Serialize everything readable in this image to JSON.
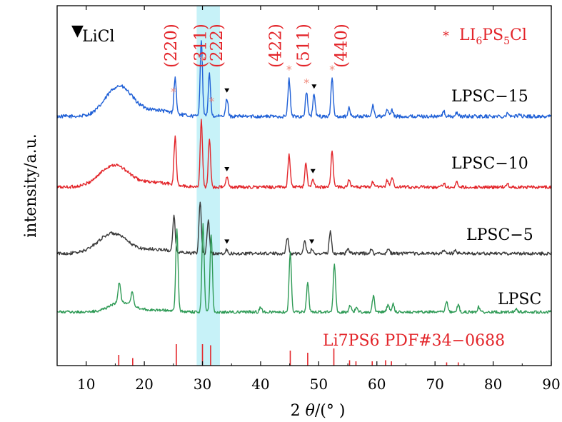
{
  "chart_data": {
    "type": "line",
    "xlabel_prefix": "2",
    "xlabel_symbol": "θ",
    "xlabel_unit": "/(°  )",
    "ylabel": "intensity/a.u.",
    "xlim": [
      5,
      90
    ],
    "xticks": [
      10,
      20,
      30,
      40,
      50,
      60,
      70,
      80,
      90
    ],
    "highlight_band": [
      29,
      33
    ],
    "colors": {
      "highlight": "#bdf0f7",
      "peak_marker": "#e3252a",
      "reference": "#e3252a"
    },
    "legend": {
      "licl": {
        "symbol": "▼",
        "text": "LiCl"
      },
      "lpsc": {
        "symbol": "*",
        "text_base": "LI",
        "sub1": "6",
        "text_mid": "PS",
        "sub2": "5",
        "text_end": "Cl"
      }
    },
    "reference_label": "Li7PS6   PDF#34−0688",
    "reference_lines": [
      {
        "x": 15.6,
        "h": 0.5
      },
      {
        "x": 18.0,
        "h": 0.35
      },
      {
        "x": 25.5,
        "h": 1.0
      },
      {
        "x": 30.0,
        "h": 1.0
      },
      {
        "x": 31.4,
        "h": 0.95
      },
      {
        "x": 45.1,
        "h": 0.7
      },
      {
        "x": 48.1,
        "h": 0.6
      },
      {
        "x": 52.6,
        "h": 0.8
      },
      {
        "x": 55.3,
        "h": 0.25
      },
      {
        "x": 56.4,
        "h": 0.2
      },
      {
        "x": 59.2,
        "h": 0.2
      },
      {
        "x": 61.5,
        "h": 0.25
      },
      {
        "x": 62.5,
        "h": 0.2
      },
      {
        "x": 72.0,
        "h": 0.15
      },
      {
        "x": 74.0,
        "h": 0.15
      }
    ],
    "hkl_labels": [
      {
        "text": "(220)",
        "x": 25.5
      },
      {
        "text": "(311)",
        "x": 30.6
      },
      {
        "text": "(222)",
        "x": 33.4
      },
      {
        "text": "(422)",
        "x": 43.5
      },
      {
        "text": "(511)",
        "x": 48.3
      },
      {
        "text": "(440)",
        "x": 54.8
      }
    ],
    "star_marks": [
      {
        "x": 25.0,
        "series": "LPSC-15"
      },
      {
        "x": 30.0,
        "series": "LPSC-15"
      },
      {
        "x": 31.6,
        "series": "LPSC-15"
      },
      {
        "x": 44.9,
        "series": "LPSC-15"
      },
      {
        "x": 47.9,
        "series": "LPSC-15"
      },
      {
        "x": 52.3,
        "series": "LPSC-15"
      }
    ],
    "triangle_marks": [
      {
        "x": 34.2,
        "series": "LPSC-15"
      },
      {
        "x": 49.2,
        "series": "LPSC-15"
      },
      {
        "x": 34.2,
        "series": "LPSC-10"
      },
      {
        "x": 49.0,
        "series": "LPSC-10"
      },
      {
        "x": 34.2,
        "series": "LPSC-5"
      },
      {
        "x": 48.8,
        "series": "LPSC-5"
      }
    ],
    "series": [
      {
        "name": "LPSC−15",
        "id": "LPSC-15",
        "color": "#1e5fd6",
        "baseline": 0.0,
        "noise": 0.018,
        "hump": {
          "center": 15.6,
          "height": 0.3,
          "width": 3.2
        },
        "peaks": [
          {
            "x": 25.3,
            "h": 0.36
          },
          {
            "x": 29.8,
            "h": 0.77
          },
          {
            "x": 31.2,
            "h": 0.42
          },
          {
            "x": 34.2,
            "h": 0.18
          },
          {
            "x": 44.9,
            "h": 0.37
          },
          {
            "x": 47.9,
            "h": 0.24
          },
          {
            "x": 49.2,
            "h": 0.22
          },
          {
            "x": 52.3,
            "h": 0.37
          },
          {
            "x": 55.2,
            "h": 0.08
          },
          {
            "x": 59.3,
            "h": 0.11
          },
          {
            "x": 61.8,
            "h": 0.07
          },
          {
            "x": 62.6,
            "h": 0.06
          },
          {
            "x": 71.5,
            "h": 0.05
          },
          {
            "x": 73.8,
            "h": 0.04
          },
          {
            "x": 82.5,
            "h": 0.04
          },
          {
            "x": 84.5,
            "h": 0.03
          }
        ]
      },
      {
        "name": "LPSC−10",
        "id": "LPSC-10",
        "color": "#e3252a",
        "baseline": 0.0,
        "noise": 0.016,
        "hump": {
          "center": 14.8,
          "height": 0.22,
          "width": 3.5
        },
        "peaks": [
          {
            "x": 25.3,
            "h": 0.48
          },
          {
            "x": 29.8,
            "h": 0.67
          },
          {
            "x": 31.2,
            "h": 0.48
          },
          {
            "x": 34.2,
            "h": 0.1
          },
          {
            "x": 44.9,
            "h": 0.33
          },
          {
            "x": 47.8,
            "h": 0.24
          },
          {
            "x": 49.0,
            "h": 0.08
          },
          {
            "x": 52.3,
            "h": 0.37
          },
          {
            "x": 55.2,
            "h": 0.08
          },
          {
            "x": 59.3,
            "h": 0.05
          },
          {
            "x": 61.8,
            "h": 0.07
          },
          {
            "x": 62.6,
            "h": 0.1
          },
          {
            "x": 71.5,
            "h": 0.04
          },
          {
            "x": 73.8,
            "h": 0.05
          },
          {
            "x": 82.5,
            "h": 0.03
          }
        ]
      },
      {
        "name": "LPSC−5",
        "id": "LPSC-5",
        "color": "#3a3a3a",
        "baseline": 0.0,
        "noise": 0.016,
        "hump": {
          "center": 14.5,
          "height": 0.2,
          "width": 3.5
        },
        "peaks": [
          {
            "x": 25.1,
            "h": 0.35
          },
          {
            "x": 29.6,
            "h": 0.52
          },
          {
            "x": 31.0,
            "h": 0.33
          },
          {
            "x": 34.2,
            "h": 0.04
          },
          {
            "x": 44.6,
            "h": 0.16
          },
          {
            "x": 47.6,
            "h": 0.12
          },
          {
            "x": 48.8,
            "h": 0.04
          },
          {
            "x": 52.0,
            "h": 0.22
          },
          {
            "x": 55.0,
            "h": 0.05
          },
          {
            "x": 59.0,
            "h": 0.04
          },
          {
            "x": 62.0,
            "h": 0.05
          },
          {
            "x": 71.5,
            "h": 0.03
          },
          {
            "x": 73.5,
            "h": 0.03
          }
        ]
      },
      {
        "name": "LPSC",
        "id": "LPSC",
        "color": "#2e9a55",
        "baseline": 0.0,
        "noise": 0.014,
        "hump": {
          "center": 16.0,
          "height": 0.1,
          "width": 2.8
        },
        "peaks": [
          {
            "x": 15.7,
            "h": 0.2
          },
          {
            "x": 17.9,
            "h": 0.14
          },
          {
            "x": 25.6,
            "h": 0.82
          },
          {
            "x": 30.1,
            "h": 0.88
          },
          {
            "x": 31.5,
            "h": 0.78
          },
          {
            "x": 40.0,
            "h": 0.05
          },
          {
            "x": 45.1,
            "h": 0.6
          },
          {
            "x": 48.1,
            "h": 0.3
          },
          {
            "x": 52.7,
            "h": 0.48
          },
          {
            "x": 55.4,
            "h": 0.07
          },
          {
            "x": 56.5,
            "h": 0.05
          },
          {
            "x": 59.4,
            "h": 0.16
          },
          {
            "x": 61.9,
            "h": 0.07
          },
          {
            "x": 62.8,
            "h": 0.08
          },
          {
            "x": 72.0,
            "h": 0.11
          },
          {
            "x": 74.0,
            "h": 0.07
          },
          {
            "x": 77.5,
            "h": 0.05
          },
          {
            "x": 84.0,
            "h": 0.03
          }
        ]
      }
    ]
  }
}
